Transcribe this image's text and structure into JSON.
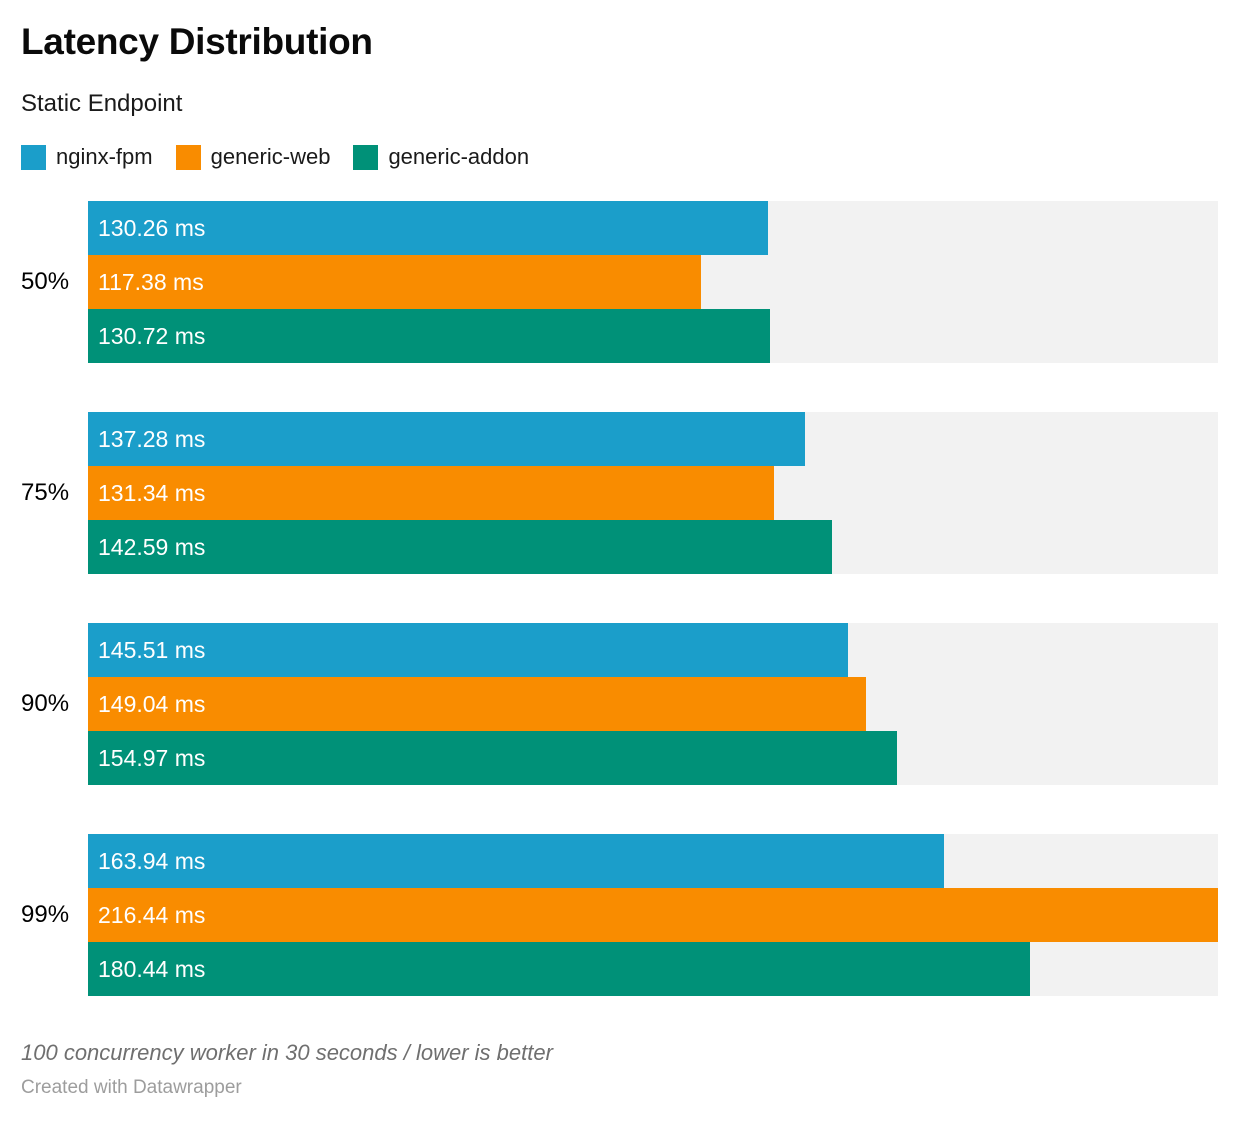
{
  "header": {
    "title": "Latency Distribution",
    "subtitle": "Static Endpoint"
  },
  "legend": {
    "items": [
      {
        "label": "nginx-fpm",
        "color": "#1b9eca"
      },
      {
        "label": "generic-web",
        "color": "#f98c00"
      },
      {
        "label": "generic-addon",
        "color": "#009178"
      }
    ]
  },
  "chart_data": {
    "type": "bar",
    "orientation": "horizontal",
    "title": "Latency Distribution",
    "subtitle": "Static Endpoint",
    "categories": [
      "50%",
      "75%",
      "90%",
      "99%"
    ],
    "series": [
      {
        "name": "nginx-fpm",
        "color": "#1b9eca",
        "values": [
          130.26,
          137.28,
          145.51,
          163.94
        ]
      },
      {
        "name": "generic-web",
        "color": "#f98c00",
        "values": [
          117.38,
          131.34,
          149.04,
          216.44
        ]
      },
      {
        "name": "generic-addon",
        "color": "#009178",
        "values": [
          130.72,
          142.59,
          154.97,
          180.44
        ]
      }
    ],
    "value_suffix": " ms",
    "value_decimals": 2,
    "xlim": [
      0,
      216.44
    ],
    "grid": false,
    "legend_position": "top",
    "bar_track_color": "#f2f2f2",
    "value_label_color": "#ffffff"
  },
  "footer": {
    "note": "100 concurrency worker in 30 seconds / lower is better",
    "attribution": "Created with Datawrapper"
  }
}
